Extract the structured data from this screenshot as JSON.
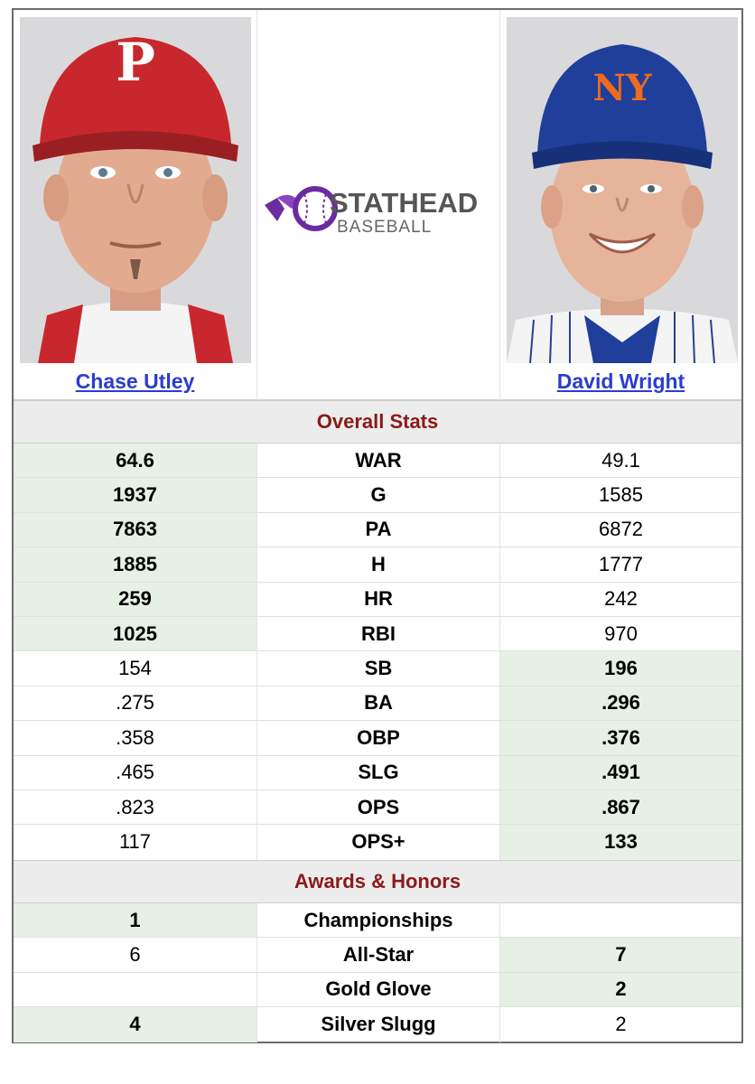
{
  "players": {
    "left": {
      "name": "Chase Utley",
      "cap_color": "#c8282d",
      "cap_letter": "P"
    },
    "right": {
      "name": "David Wright",
      "cap_color": "#1f3f9a",
      "cap_letter": "NY"
    }
  },
  "logo": {
    "line1": "STATHEAD",
    "line2": "BASEBALL",
    "brand_color": "#6a2ca0"
  },
  "sections": {
    "overall": "Overall Stats",
    "awards": "Awards & Honors"
  },
  "overall_stats": [
    {
      "stat": "WAR",
      "left": "64.6",
      "right": "49.1",
      "leader": "left"
    },
    {
      "stat": "G",
      "left": "1937",
      "right": "1585",
      "leader": "left"
    },
    {
      "stat": "PA",
      "left": "7863",
      "right": "6872",
      "leader": "left"
    },
    {
      "stat": "H",
      "left": "1885",
      "right": "1777",
      "leader": "left"
    },
    {
      "stat": "HR",
      "left": "259",
      "right": "242",
      "leader": "left"
    },
    {
      "stat": "RBI",
      "left": "1025",
      "right": "970",
      "leader": "left"
    },
    {
      "stat": "SB",
      "left": "154",
      "right": "196",
      "leader": "right"
    },
    {
      "stat": "BA",
      "left": ".275",
      "right": ".296",
      "leader": "right"
    },
    {
      "stat": "OBP",
      "left": ".358",
      "right": ".376",
      "leader": "right"
    },
    {
      "stat": "SLG",
      "left": ".465",
      "right": ".491",
      "leader": "right"
    },
    {
      "stat": "OPS",
      "left": ".823",
      "right": ".867",
      "leader": "right"
    },
    {
      "stat": "OPS+",
      "left": "117",
      "right": "133",
      "leader": "right"
    }
  ],
  "awards": [
    {
      "stat": "Championships",
      "left": "1",
      "right": "",
      "leader": "left"
    },
    {
      "stat": "All-Star",
      "left": "6",
      "right": "7",
      "leader": "right"
    },
    {
      "stat": "Gold Glove",
      "left": "",
      "right": "2",
      "leader": "right"
    },
    {
      "stat": "Silver Slugg",
      "left": "4",
      "right": "2",
      "leader": "left"
    }
  ],
  "colors": {
    "highlight": "#e6f0e4",
    "section_text": "#8b1a1a",
    "link": "#2b3ccf"
  }
}
